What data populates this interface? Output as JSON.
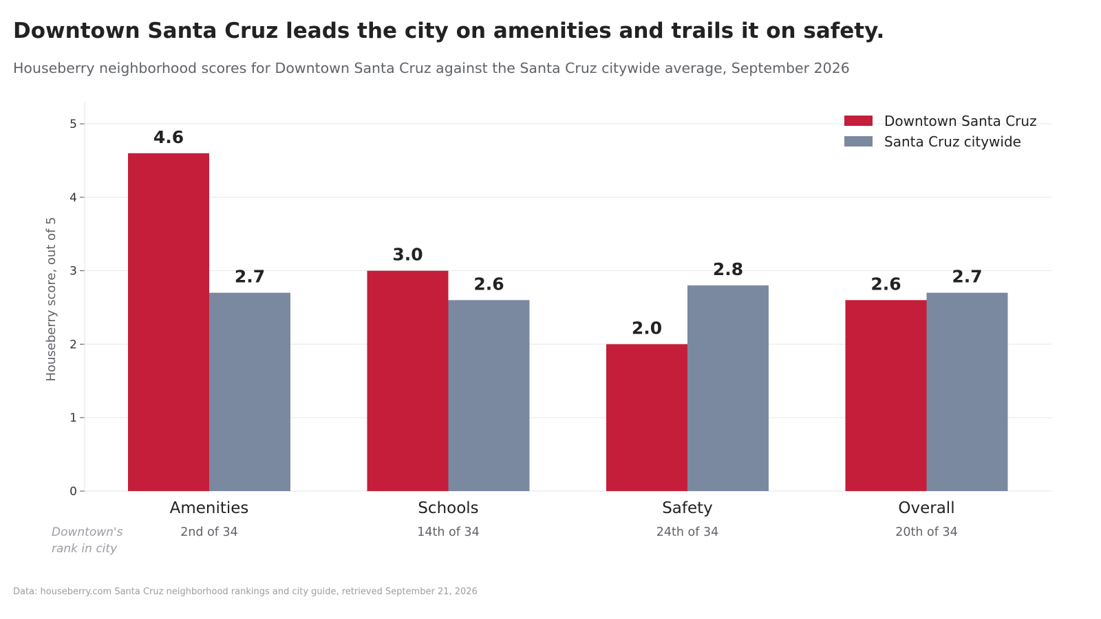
{
  "title": "Downtown Santa Cruz leads the city on amenities and trails it on safety.",
  "subtitle": "Houseberry neighborhood scores for Downtown Santa Cruz against the Santa Cruz citywide average, September 2026",
  "source": "Data: houseberry.com Santa Cruz neighborhood rankings and city guide, retrieved September 21, 2026",
  "chart_data": {
    "type": "bar",
    "categories": [
      "Amenities",
      "Schools",
      "Safety",
      "Overall"
    ],
    "series": [
      {
        "name": "Downtown Santa Cruz",
        "color": "#c41e3a",
        "values": [
          4.6,
          3.0,
          2.0,
          2.6
        ],
        "labels": [
          "4.6",
          "3.0",
          "2.0",
          "2.6"
        ]
      },
      {
        "name": "Santa Cruz citywide",
        "color": "#7a899f",
        "values": [
          2.7,
          2.6,
          2.8,
          2.7
        ],
        "labels": [
          "2.7",
          "2.6",
          "2.8",
          "2.7"
        ]
      }
    ],
    "ylabel": "Houseberry score, out of 5",
    "xlabel": "",
    "ylim": [
      0,
      5.3
    ],
    "yticks": [
      "0",
      "1",
      "2",
      "3",
      "4",
      "5"
    ],
    "grid": true,
    "legend": "top-right",
    "rank_label": [
      "Downtown's",
      "rank in city"
    ],
    "ranks": [
      "2nd of 34",
      "14th of 34",
      "24th of 34",
      "20th of 34"
    ]
  }
}
